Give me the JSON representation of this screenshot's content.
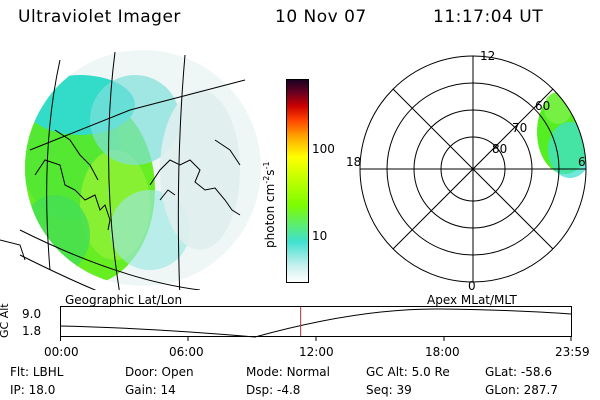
{
  "header": {
    "title": "Ultraviolet Imager",
    "date": "10 Nov 07",
    "time": "11:17:04 UT"
  },
  "colorbar": {
    "label": "photon cm",
    "label_exp1": "-2",
    "label_mid": "s",
    "label_exp2": "-1",
    "ticks": [
      "100",
      "10"
    ],
    "scale": "log",
    "colors": [
      "#ffffff",
      "#40e0d0",
      "#66ff00",
      "#ffff00",
      "#ff8c00",
      "#dc143c",
      "#8b0000",
      "#1a0020"
    ]
  },
  "polar": {
    "mlt_labels": {
      "top": "12",
      "left": "18",
      "right": "6",
      "bottom": "0"
    },
    "mlat_labels": [
      "60",
      "70",
      "80"
    ]
  },
  "timeline": {
    "ylabel": "GC Alt",
    "y_ticks": [
      "9.0",
      "1.8"
    ],
    "left_label": "Geographic Lat/Lon",
    "right_label": "Apex  MLat/MLT",
    "x_ticks": [
      "00:00",
      "06:00",
      "12:00",
      "18:00",
      "23:59"
    ],
    "current_time_fraction": 0.47,
    "marker_color": "#b03030"
  },
  "info": {
    "row1": [
      {
        "label": "Flt:",
        "value": "LBHL"
      },
      {
        "label": "Door:",
        "value": "Open"
      },
      {
        "label": "Mode:",
        "value": "Normal"
      },
      {
        "label": "GC Alt:",
        "value": "5.0 Re"
      },
      {
        "label": "GLat:",
        "value": "-58.6"
      }
    ],
    "row2": [
      {
        "label": "IP:",
        "value": "18.0"
      },
      {
        "label": "Gain:",
        "value": "14"
      },
      {
        "label": "Dsp:",
        "value": "-4.8"
      },
      {
        "label": "Seq:",
        "value": "39"
      },
      {
        "label": "GLon:",
        "value": "287.7"
      }
    ]
  }
}
